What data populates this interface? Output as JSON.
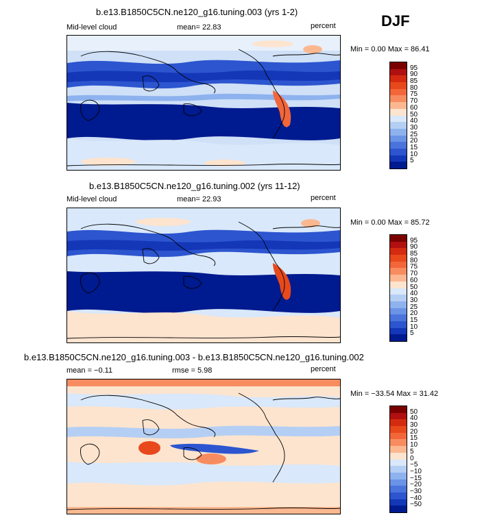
{
  "season": "DJF",
  "panels": [
    {
      "title": "b.e13.B1850C5CN.ne120_g16.tuning.003 (yrs 1-2)",
      "left_label": "Mid-level cloud",
      "center_label": "mean=   22.83",
      "units": "percent",
      "minmax": "Min =    0.00 Max =  86.41",
      "colorbar": {
        "labels": [
          "95",
          "90",
          "85",
          "80",
          "75",
          "70",
          "60",
          "50",
          "40",
          "30",
          "25",
          "20",
          "15",
          "10",
          "5"
        ],
        "colors": [
          "#7a0000",
          "#b01010",
          "#d42a10",
          "#e8491c",
          "#f2663a",
          "#f78c60",
          "#fbb890",
          "#fde4cf",
          "#d9e8fa",
          "#b5cff4",
          "#8eb2ee",
          "#6b93e6",
          "#4a74dc",
          "#2c55cf",
          "#1437b8",
          "#001a8f"
        ]
      }
    },
    {
      "title": "b.e13.B1850C5CN.ne120_g16.tuning.002 (yrs 11-12)",
      "left_label": "Mid-level cloud",
      "center_label": "mean=   22.93",
      "units": "percent",
      "minmax": "Min =    0.00 Max =  85.72",
      "colorbar": {
        "labels": [
          "95",
          "90",
          "85",
          "80",
          "75",
          "70",
          "60",
          "50",
          "40",
          "30",
          "25",
          "20",
          "15",
          "10",
          "5"
        ],
        "colors": [
          "#7a0000",
          "#b01010",
          "#d42a10",
          "#e8491c",
          "#f2663a",
          "#f78c60",
          "#fbb890",
          "#fde4cf",
          "#d9e8fa",
          "#b5cff4",
          "#8eb2ee",
          "#6b93e6",
          "#4a74dc",
          "#2c55cf",
          "#1437b8",
          "#001a8f"
        ]
      }
    },
    {
      "title": "b.e13.B1850C5CN.ne120_g16.tuning.003 - b.e13.B1850C5CN.ne120_g16.tuning.002",
      "left_label": "mean =  −0.11",
      "center_label": "rmse =    5.98",
      "units": "percent",
      "minmax": "Min = −33.54 Max =  31.42",
      "colorbar": {
        "labels": [
          "50",
          "40",
          "30",
          "20",
          "15",
          "10",
          "5",
          "0",
          "−5",
          "−10",
          "−15",
          "−20",
          "−30",
          "−40",
          "−50"
        ],
        "colors": [
          "#7a0000",
          "#b01010",
          "#d42a10",
          "#e8491c",
          "#f2663a",
          "#f78c60",
          "#fbb890",
          "#fde4cf",
          "#d9e8fa",
          "#b5cff4",
          "#8eb2ee",
          "#6b93e6",
          "#4a74dc",
          "#2c55cf",
          "#1437b8",
          "#001a8f"
        ]
      }
    }
  ],
  "chart_data": [
    {
      "type": "heatmap",
      "title": "b.e13.B1850C5CN.ne120_g16.tuning.003 (yrs 1-2)",
      "variable": "Mid-level cloud",
      "units": "percent",
      "mean": 22.83,
      "min": 0.0,
      "max": 86.41,
      "contour_levels": [
        5,
        10,
        15,
        20,
        25,
        30,
        40,
        50,
        60,
        70,
        75,
        80,
        85,
        90,
        95
      ]
    },
    {
      "type": "heatmap",
      "title": "b.e13.B1850C5CN.ne120_g16.tuning.002 (yrs 11-12)",
      "variable": "Mid-level cloud",
      "units": "percent",
      "mean": 22.93,
      "min": 0.0,
      "max": 85.72,
      "contour_levels": [
        5,
        10,
        15,
        20,
        25,
        30,
        40,
        50,
        60,
        70,
        75,
        80,
        85,
        90,
        95
      ]
    },
    {
      "type": "heatmap",
      "title": "b.e13.B1850C5CN.ne120_g16.tuning.003 - b.e13.B1850C5CN.ne120_g16.tuning.002",
      "units": "percent",
      "mean": -0.11,
      "rmse": 5.98,
      "min": -33.54,
      "max": 31.42,
      "contour_levels": [
        -50,
        -40,
        -30,
        -20,
        -15,
        -10,
        -5,
        0,
        5,
        10,
        15,
        20,
        30,
        40,
        50
      ]
    }
  ]
}
